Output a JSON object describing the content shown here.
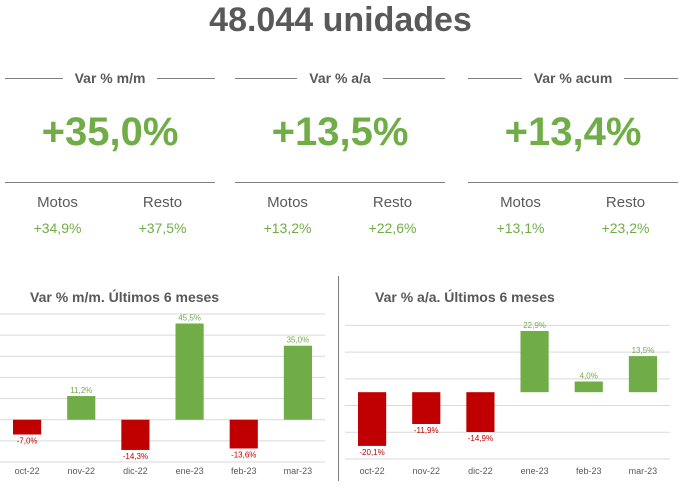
{
  "headline": "48.044 unidades",
  "kpis": [
    {
      "title": "Var % m/m",
      "value": "+35,0%",
      "sub": [
        {
          "label": "Motos",
          "value": "+34,9%"
        },
        {
          "label": "Resto",
          "value": "+37,5%"
        }
      ]
    },
    {
      "title": "Var % a/a",
      "value": "+13,5%",
      "sub": [
        {
          "label": "Motos",
          "value": "+13,2%"
        },
        {
          "label": "Resto",
          "value": "+22,6%"
        }
      ]
    },
    {
      "title": "Var % acum",
      "value": "+13,4%",
      "sub": [
        {
          "label": "Motos",
          "value": "+13,1%"
        },
        {
          "label": "Resto",
          "value": "+23,2%"
        }
      ]
    }
  ],
  "colors": {
    "positive": "#70ad47",
    "negative": "#c00000",
    "text": "#595959"
  },
  "chart_data": [
    {
      "type": "bar",
      "title": "Var % m/m. Últimos 6 meses",
      "categories": [
        "oct-22",
        "nov-22",
        "dic-22",
        "ene-23",
        "feb-23",
        "mar-23"
      ],
      "values": [
        -7.0,
        11.2,
        -14.3,
        45.5,
        -13.6,
        35.0
      ],
      "labels": [
        "-7,0%",
        "11,2%",
        "-14,3%",
        "45,5%",
        "-13,6%",
        "35,0%"
      ],
      "ylim": [
        -20,
        50
      ],
      "grid": true
    },
    {
      "type": "bar",
      "title": "Var % a/a. Últimos 6 meses",
      "categories": [
        "oct-22",
        "nov-22",
        "dic-22",
        "ene-23",
        "feb-23",
        "mar-23"
      ],
      "values": [
        -20.1,
        -11.9,
        -14.9,
        22.9,
        4.0,
        13.5
      ],
      "labels": [
        "-20,1%",
        "-11,9%",
        "-14,9%",
        "22,9%",
        "4,0%",
        "13,5%"
      ],
      "ylim": [
        -25,
        30
      ],
      "grid": true
    }
  ]
}
